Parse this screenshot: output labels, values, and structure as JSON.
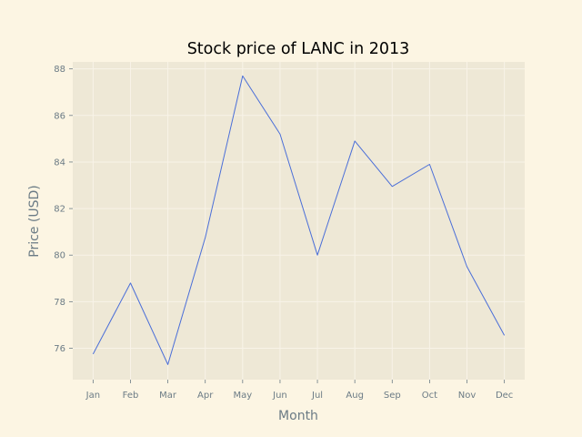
{
  "chart_data": {
    "type": "line",
    "title": "Stock price of LANC in 2013",
    "xlabel": "Month",
    "ylabel": "Price (USD)",
    "categories": [
      "Jan",
      "Feb",
      "Mar",
      "Apr",
      "May",
      "Jun",
      "Jul",
      "Aug",
      "Sep",
      "Oct",
      "Nov",
      "Dec"
    ],
    "series": [
      {
        "values": [
          75.75,
          78.8,
          75.3,
          80.75,
          87.7,
          85.2,
          80.0,
          84.9,
          82.95,
          83.9,
          79.5,
          76.55
        ],
        "color": "#4a6ed8"
      }
    ],
    "ylim": [
      74.65,
      88.3
    ],
    "yticks": [
      76,
      78,
      80,
      82,
      84,
      86,
      88
    ],
    "grid": true,
    "legend": "none",
    "colors": {
      "page_background": "#fcf5e3",
      "plot_background": "#eee8d6",
      "grid": "#f8f3e8",
      "text": "#6b7b85"
    }
  }
}
